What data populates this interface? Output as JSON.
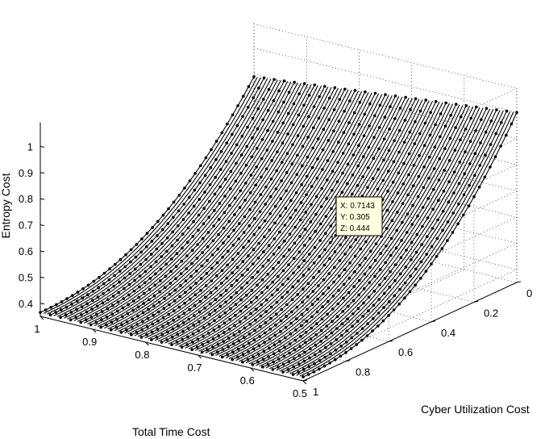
{
  "chart_data": {
    "type": "scatter",
    "projection": "3d",
    "title": "",
    "xlabel": "Total Time Cost",
    "ylabel": "Cyber Utilization Cost",
    "zlabel": "Entropy Cost",
    "xlim": [
      0.5,
      1
    ],
    "ylim": [
      0,
      1
    ],
    "zlim": [
      0.35,
      1
    ],
    "x_ticks": [
      "0.5",
      "0.6",
      "0.7",
      "0.8",
      "0.9",
      "1"
    ],
    "y_ticks": [
      "0",
      "0.2",
      "0.4",
      "0.6",
      "0.8",
      "1"
    ],
    "z_ticks": [
      "0.4",
      "0.5",
      "0.6",
      "0.7",
      "0.8",
      "0.9",
      "1"
    ],
    "grid": true,
    "marker": "dot",
    "marker_color": "#000000",
    "surface_corners": [
      {
        "x": 1.0,
        "y": 0.0,
        "z": 0.89
      },
      {
        "x": 0.5,
        "y": 0.0,
        "z": 1.0
      },
      {
        "x": 1.0,
        "y": 1.0,
        "z": 0.365
      },
      {
        "x": 0.5,
        "y": 1.0,
        "z": 0.365
      }
    ],
    "datatip": {
      "lines": [
        "X: 0.7143",
        "Y: 0.305",
        "Z: 0.444"
      ],
      "x": 0.7143,
      "y": 0.305,
      "z": 0.444
    }
  }
}
